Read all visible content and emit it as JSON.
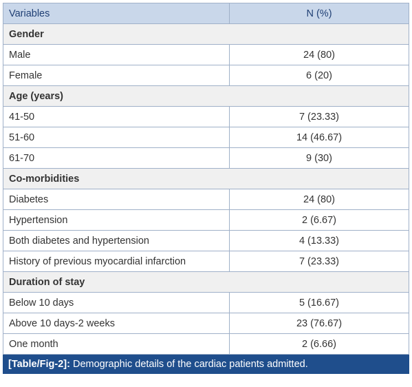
{
  "table": {
    "header": [
      "Variables",
      "N (%)"
    ],
    "rows": [
      [
        "Gender"
      ],
      [
        "Male",
        "24 (80)"
      ],
      [
        "Female",
        "6 (20)"
      ],
      [
        "Age (years)"
      ],
      [
        "41-50",
        "7 (23.33)"
      ],
      [
        "51-60",
        "14 (46.67)"
      ],
      [
        "61-70",
        "9 (30)"
      ],
      [
        "Co-morbidities"
      ],
      [
        "Diabetes",
        "24 (80)"
      ],
      [
        "Hypertension",
        "2 (6.67)"
      ],
      [
        "Both diabetes and hypertension",
        "4 (13.33)"
      ],
      [
        "History of previous myocardial infarction",
        "7 (23.33)"
      ],
      [
        "Duration of stay"
      ],
      [
        "Below 10 days",
        "5 (16.67)"
      ],
      [
        "Above 10 days-2 weeks",
        "23 (76.67)"
      ],
      [
        "One month",
        "2 (6.66)"
      ]
    ]
  },
  "caption": {
    "label": "[Table/Fig-2]:",
    "text": "Demographic details of the cardiac patients admitted."
  }
}
